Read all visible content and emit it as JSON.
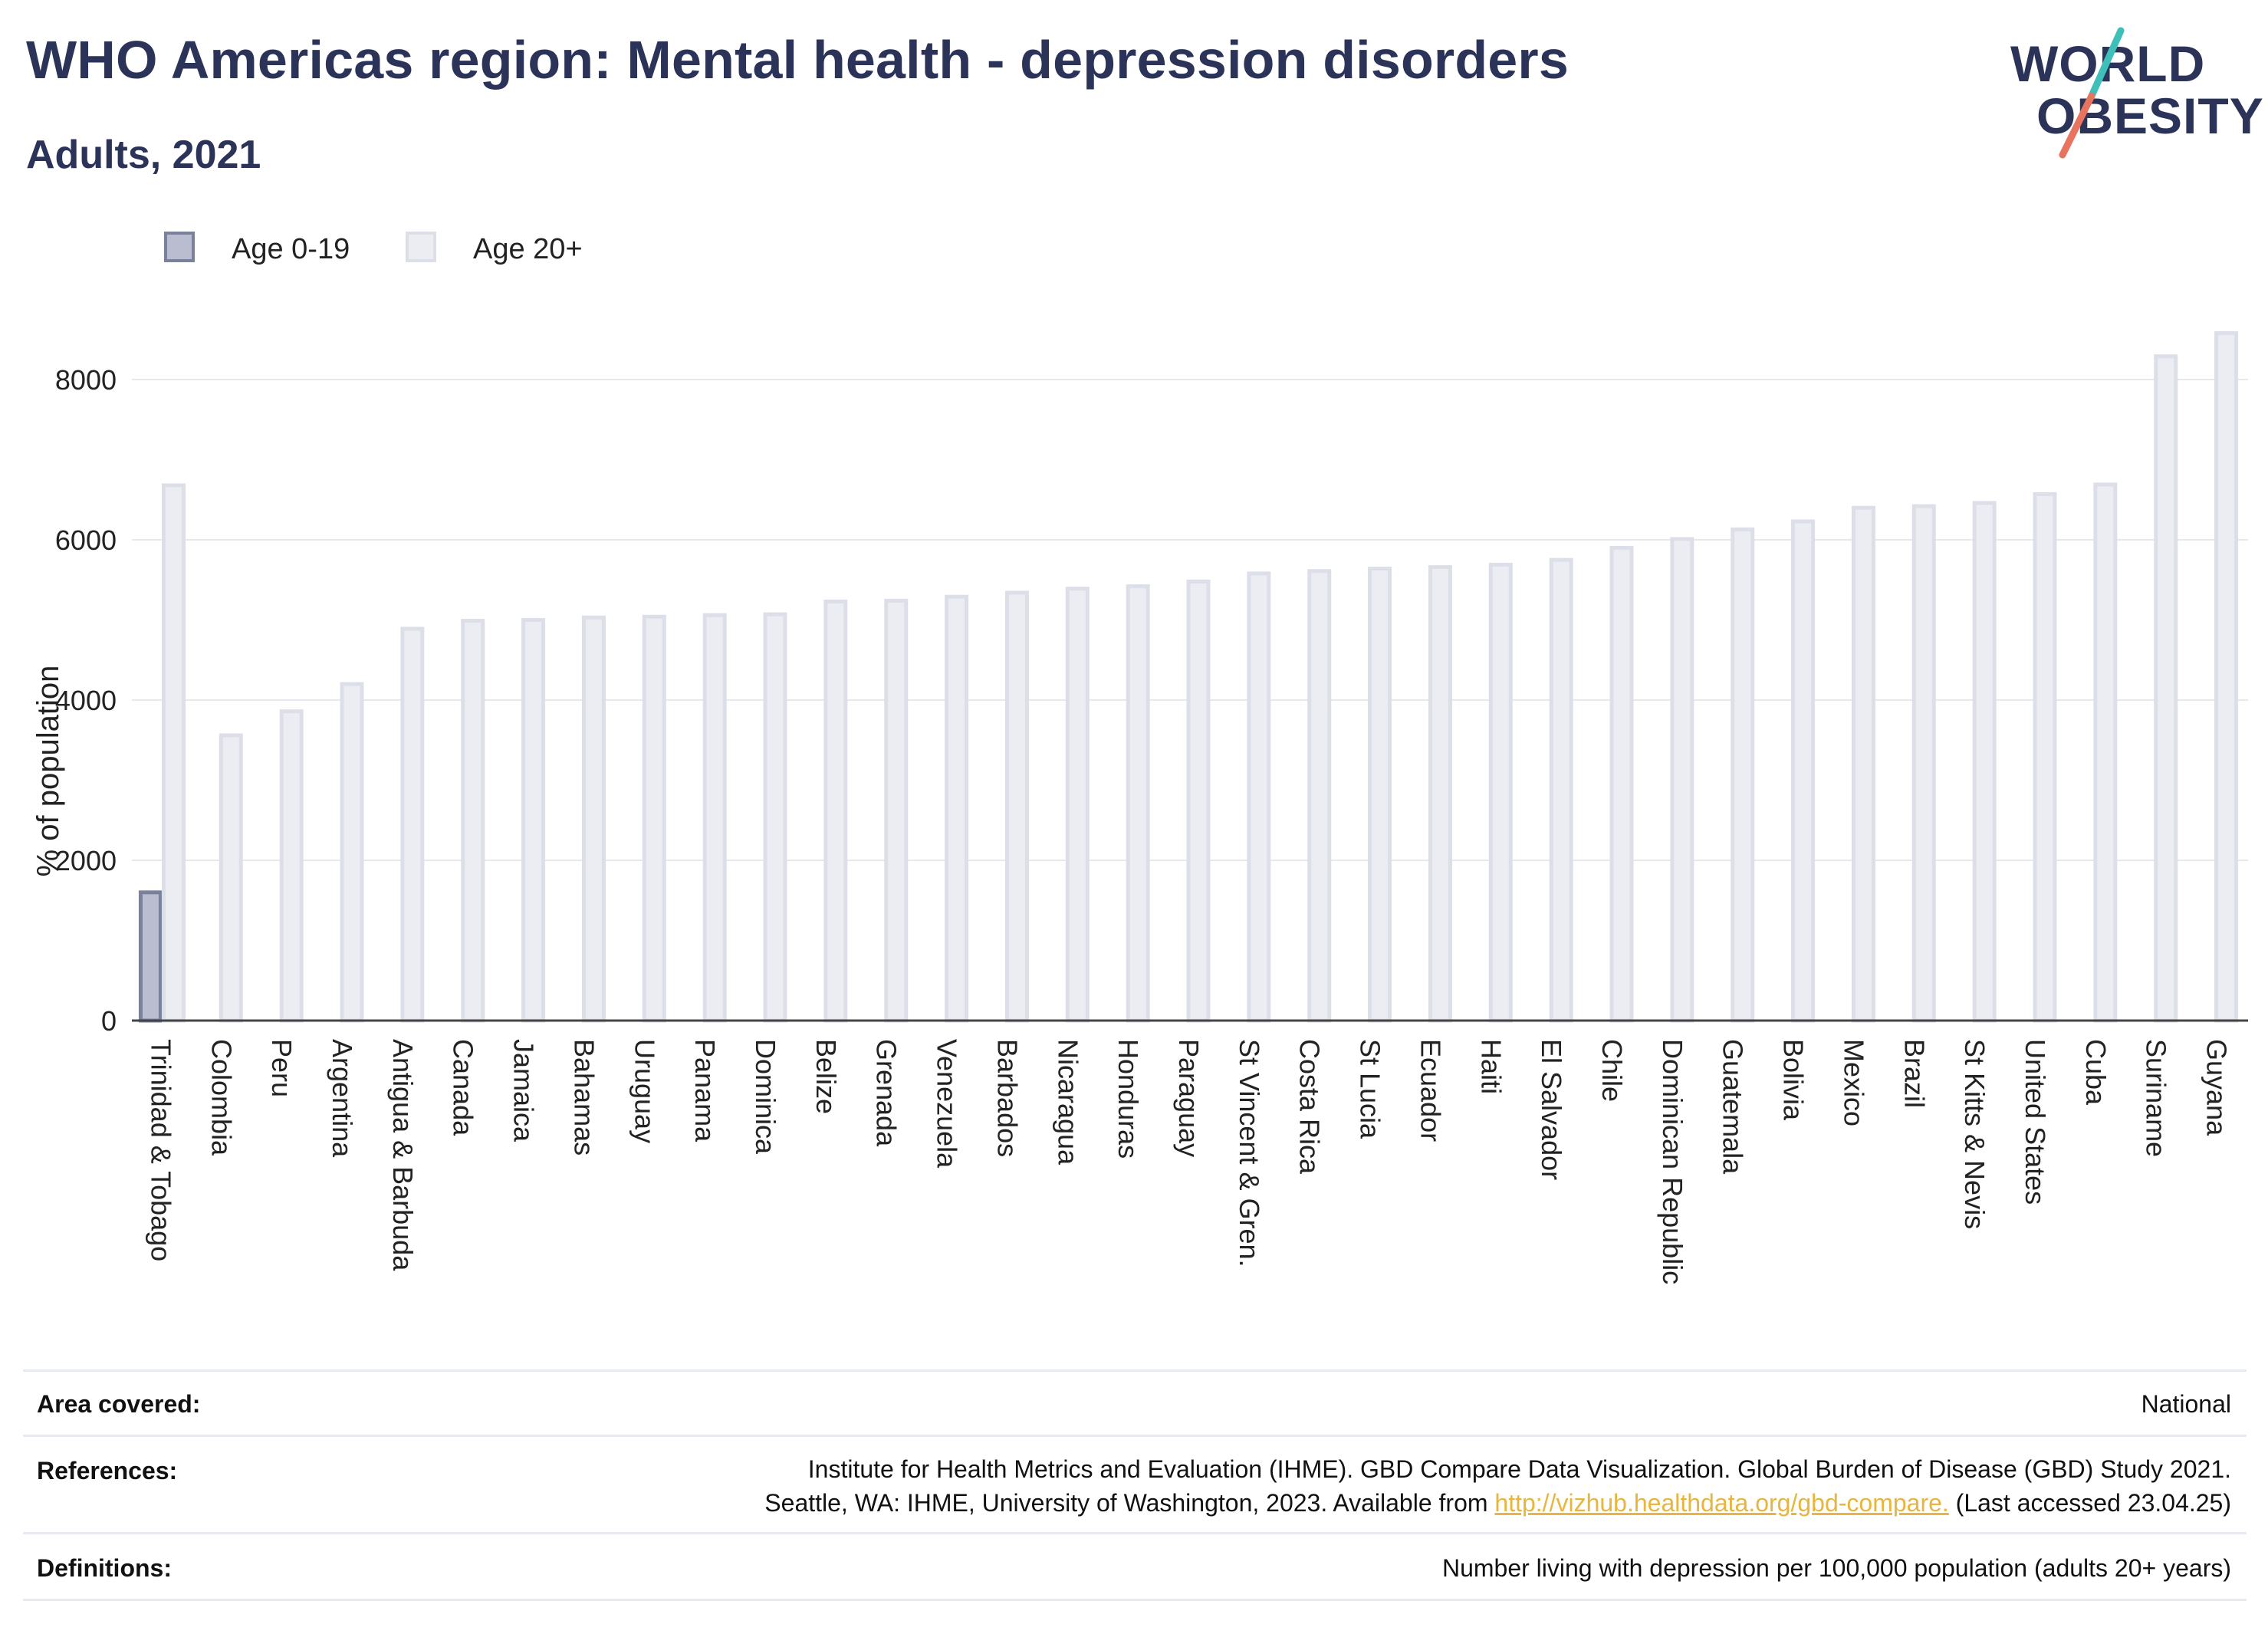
{
  "header": {
    "title": "WHO Americas region: Mental health - depression disorders",
    "subtitle": "Adults, 2021"
  },
  "logo": {
    "line1": "WORLD",
    "line2": "OBESITY"
  },
  "colors": {
    "title": "#2b3358",
    "series_0_19": "#b9bdcf",
    "series_0_19_edge": "#7a819c",
    "series_20_plus": "#ecedf3",
    "series_20_plus_edge": "#dcdfe8",
    "logo_teal": "#3fbfb9",
    "logo_coral": "#e8735f"
  },
  "legend": [
    {
      "label": "Age 0-19"
    },
    {
      "label": "Age 20+"
    }
  ],
  "chart_data": {
    "type": "bar",
    "ylabel": "% of population",
    "xlabel": "",
    "ylim": [
      0,
      9000
    ],
    "yticks": [
      0,
      2000,
      4000,
      6000,
      8000
    ],
    "grid": true,
    "legend_position": "top-left",
    "categories": [
      "Trinidad & Tobago",
      "Colombia",
      "Peru",
      "Argentina",
      "Antigua & Barbuda",
      "Canada",
      "Jamaica",
      "Bahamas",
      "Uruguay",
      "Panama",
      "Dominica",
      "Belize",
      "Grenada",
      "Venezuela",
      "Barbados",
      "Nicaragua",
      "Honduras",
      "Paraguay",
      "St Vincent & Gren.",
      "Costa Rica",
      "St Lucia",
      "Ecuador",
      "Haiti",
      "El Salvador",
      "Chile",
      "Dominican Republic",
      "Guatemala",
      "Bolivia",
      "Mexico",
      "Brazil",
      "St Kitts & Nevis",
      "United States",
      "Cuba",
      "Suriname",
      "Guyana"
    ],
    "series": [
      {
        "name": "Age 0-19",
        "values": [
          1600,
          null,
          null,
          null,
          null,
          null,
          null,
          null,
          null,
          null,
          null,
          null,
          null,
          null,
          null,
          null,
          null,
          null,
          null,
          null,
          null,
          null,
          null,
          null,
          null,
          null,
          null,
          null,
          null,
          null,
          null,
          null,
          null,
          null,
          null
        ]
      },
      {
        "name": "Age 20+",
        "values": [
          6680,
          3560,
          3860,
          4200,
          4890,
          4990,
          5000,
          5030,
          5040,
          5060,
          5070,
          5230,
          5240,
          5290,
          5340,
          5390,
          5420,
          5480,
          5580,
          5610,
          5640,
          5660,
          5690,
          5750,
          5900,
          6010,
          6130,
          6230,
          6400,
          6420,
          6460,
          6570,
          6690,
          8290,
          8580
        ]
      }
    ]
  },
  "footer": {
    "area_label": "Area covered:",
    "area_value": "National",
    "refs_label": "References:",
    "refs_line1": "Institute for Health Metrics and Evaluation (IHME). GBD Compare Data Visualization. Global Burden of Disease (GBD) Study 2021.",
    "refs_line2_pre": "Seattle, WA: IHME, University of Washington, 2023. Available from",
    "refs_link": "http://vizhub.healthdata.org/gbd-compare.",
    "refs_line2_post": "(Last accessed 23.04.25)",
    "defs_label": "Definitions:",
    "defs_value": "Number living with depression per 100,000 population (adults 20+ years)"
  }
}
